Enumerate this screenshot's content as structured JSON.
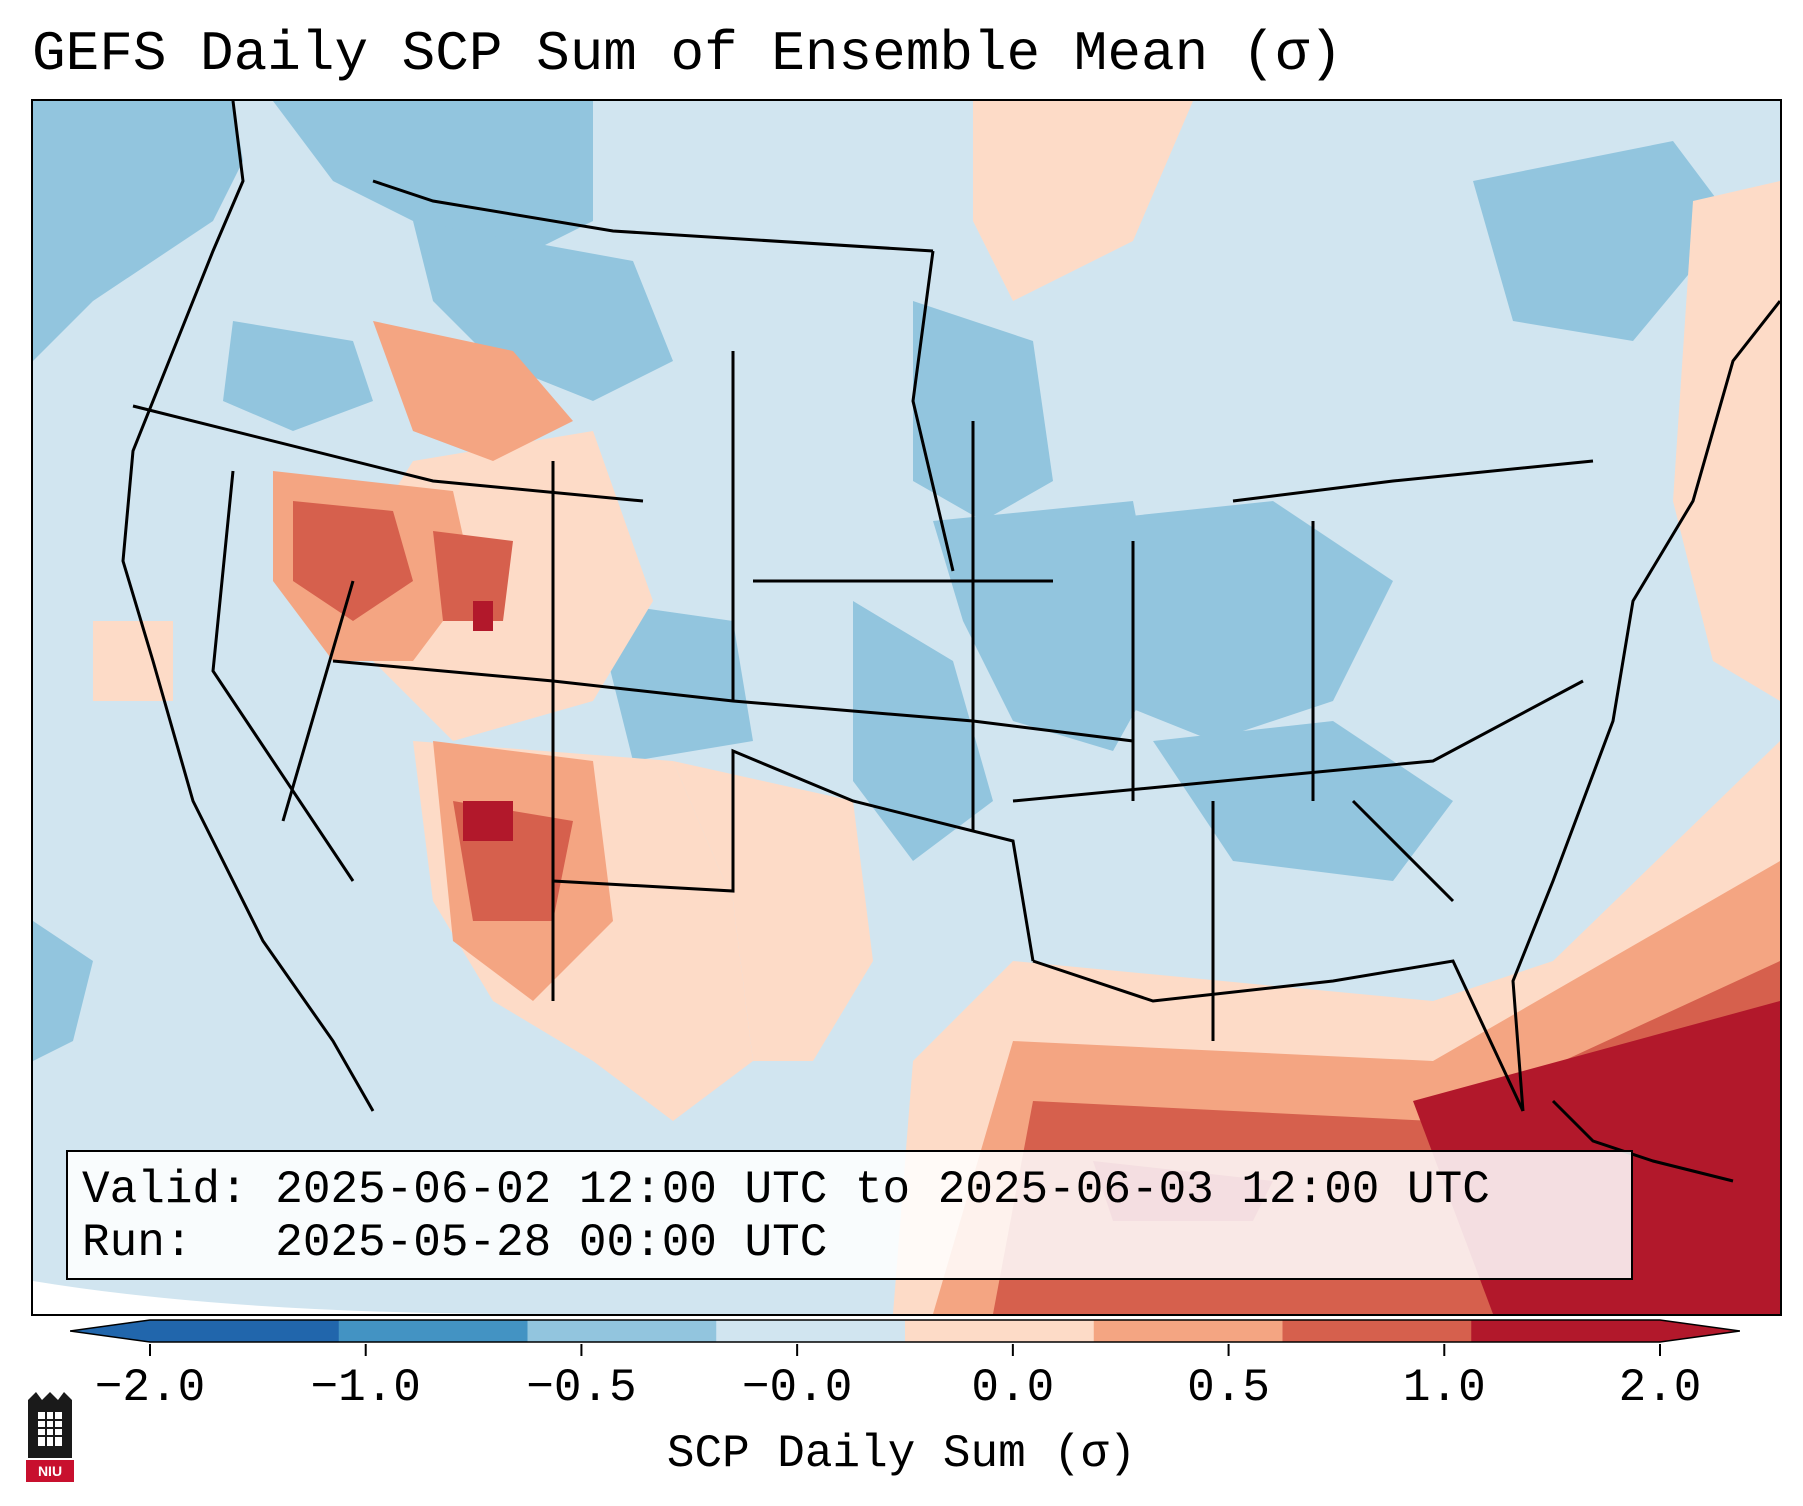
{
  "title": "GEFS Daily SCP Sum of Ensemble Mean (σ)",
  "info": {
    "valid_line": "Valid: 2025-06-02 12:00 UTC to 2025-06-03 12:00 UTC",
    "run_line": "Run:   2025-05-28 00:00 UTC"
  },
  "colorbar": {
    "label": "SCP Daily Sum (σ)",
    "ticks": [
      "−2.0",
      "−1.0",
      "−0.5",
      "−0.0",
      "0.0",
      "0.5",
      "1.0",
      "2.0"
    ],
    "colors": [
      "#2166ac",
      "#4393c3",
      "#92c5de",
      "#d1e5f0",
      "#fddbc7",
      "#f4a582",
      "#d6604d",
      "#b2182b"
    ]
  },
  "logo": {
    "text": "NIU"
  }
}
